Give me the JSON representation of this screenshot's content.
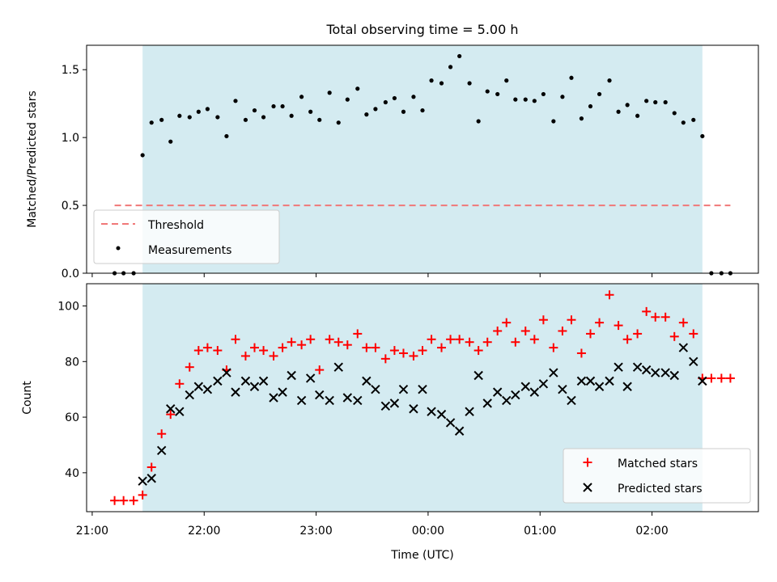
{
  "chart_data": [
    {
      "type": "scatter",
      "title": "Total observing time = 5.00 h",
      "ylabel": "Matched/Predicted stars",
      "xlabel": "",
      "ylim": [
        0,
        1.68
      ],
      "yticks": [
        0.0,
        0.5,
        1.0,
        1.5
      ],
      "ytick_labels": [
        "0.0",
        "0.5",
        "1.0",
        "1.5"
      ],
      "grid": false,
      "legend_position": "lower-left",
      "shaded_span": {
        "x0": 21.45,
        "x1": 26.45,
        "color": "#d4ebf1"
      },
      "threshold": {
        "name": "Threshold",
        "y": 0.5,
        "x0": 21.2,
        "x1": 26.7,
        "color": "#f07878"
      },
      "legend": [
        "Threshold",
        "Measurements"
      ],
      "series": [
        {
          "name": "Measurements",
          "color": "#000000",
          "x": [
            21.2,
            21.28,
            21.37,
            21.45,
            21.53,
            21.62,
            21.7,
            21.78,
            21.87,
            21.95,
            22.03,
            22.12,
            22.2,
            22.28,
            22.37,
            22.45,
            22.53,
            22.62,
            22.7,
            22.78,
            22.87,
            22.95,
            23.03,
            23.12,
            23.2,
            23.28,
            23.37,
            23.45,
            23.53,
            23.62,
            23.7,
            23.78,
            23.87,
            23.95,
            24.03,
            24.12,
            24.2,
            24.28,
            24.37,
            24.45,
            24.53,
            24.62,
            24.7,
            24.78,
            24.87,
            24.95,
            25.03,
            25.12,
            25.2,
            25.28,
            25.37,
            25.45,
            25.53,
            25.62,
            25.7,
            25.78,
            25.87,
            25.95,
            26.03,
            26.12,
            26.2,
            26.28,
            26.37,
            26.45,
            26.53,
            26.62,
            26.7
          ],
          "y": [
            0.0,
            0.0,
            0.0,
            0.87,
            1.11,
            1.13,
            0.97,
            1.16,
            1.15,
            1.19,
            1.21,
            1.15,
            1.01,
            1.27,
            1.13,
            1.2,
            1.15,
            1.23,
            1.23,
            1.16,
            1.3,
            1.19,
            1.13,
            1.33,
            1.11,
            1.28,
            1.36,
            1.17,
            1.21,
            1.26,
            1.29,
            1.19,
            1.3,
            1.2,
            1.42,
            1.4,
            1.52,
            1.6,
            1.4,
            1.12,
            1.34,
            1.32,
            1.42,
            1.28,
            1.28,
            1.27,
            1.32,
            1.12,
            1.3,
            1.44,
            1.14,
            1.23,
            1.32,
            1.42,
            1.19,
            1.24,
            1.16,
            1.27,
            1.26,
            1.26,
            1.18,
            1.11,
            1.13,
            1.01,
            0.0,
            0.0,
            0.0
          ]
        }
      ]
    },
    {
      "type": "scatter",
      "title": "",
      "xlabel": "Time (UTC)",
      "ylabel": "Count",
      "ylim": [
        26,
        108
      ],
      "yticks": [
        40,
        60,
        80,
        100
      ],
      "ytick_labels": [
        "40",
        "60",
        "80",
        "100"
      ],
      "xlim": [
        20.95,
        26.95
      ],
      "xticks": [
        21,
        22,
        23,
        24,
        25,
        26
      ],
      "xtick_labels": [
        "21:00",
        "22:00",
        "23:00",
        "00:00",
        "01:00",
        "02:00"
      ],
      "grid": false,
      "legend_position": "lower-right",
      "shaded_span": {
        "x0": 21.45,
        "x1": 26.45,
        "color": "#d4ebf1"
      },
      "legend": [
        "Matched stars",
        "Predicted stars"
      ],
      "series": [
        {
          "name": "Matched stars",
          "marker": "plus",
          "color": "#ff0000",
          "x": [
            21.2,
            21.28,
            21.37,
            21.45,
            21.53,
            21.62,
            21.7,
            21.78,
            21.87,
            21.95,
            22.03,
            22.12,
            22.2,
            22.28,
            22.37,
            22.45,
            22.53,
            22.62,
            22.7,
            22.78,
            22.87,
            22.95,
            23.03,
            23.12,
            23.2,
            23.28,
            23.37,
            23.45,
            23.53,
            23.62,
            23.7,
            23.78,
            23.87,
            23.95,
            24.03,
            24.12,
            24.2,
            24.28,
            24.37,
            24.45,
            24.53,
            24.62,
            24.7,
            24.78,
            24.87,
            24.95,
            25.03,
            25.12,
            25.2,
            25.28,
            25.37,
            25.45,
            25.53,
            25.62,
            25.7,
            25.78,
            25.87,
            25.95,
            26.03,
            26.12,
            26.2,
            26.28,
            26.37,
            26.45,
            26.53,
            26.62,
            26.7
          ],
          "y": [
            30,
            30,
            30,
            32,
            42,
            54,
            61,
            72,
            78,
            84,
            85,
            84,
            77,
            88,
            82,
            85,
            84,
            82,
            85,
            87,
            86,
            88,
            77,
            88,
            87,
            86,
            90,
            85,
            85,
            81,
            84,
            83,
            82,
            84,
            88,
            85,
            88,
            88,
            87,
            84,
            87,
            91,
            94,
            87,
            91,
            88,
            95,
            85,
            91,
            95,
            83,
            90,
            94,
            104,
            93,
            88,
            90,
            98,
            96,
            96,
            89,
            94,
            90,
            74,
            74,
            74,
            74
          ]
        },
        {
          "name": "Predicted stars",
          "marker": "x",
          "color": "#000000",
          "x": [
            21.45,
            21.53,
            21.62,
            21.7,
            21.78,
            21.87,
            21.95,
            22.03,
            22.12,
            22.2,
            22.28,
            22.37,
            22.45,
            22.53,
            22.62,
            22.7,
            22.78,
            22.87,
            22.95,
            23.03,
            23.12,
            23.2,
            23.28,
            23.37,
            23.45,
            23.53,
            23.62,
            23.7,
            23.78,
            23.87,
            23.95,
            24.03,
            24.12,
            24.2,
            24.28,
            24.37,
            24.45,
            24.53,
            24.62,
            24.7,
            24.78,
            24.87,
            24.95,
            25.03,
            25.12,
            25.2,
            25.28,
            25.37,
            25.45,
            25.53,
            25.62,
            25.7,
            25.78,
            25.87,
            25.95,
            26.03,
            26.12,
            26.2,
            26.28,
            26.37,
            26.45
          ],
          "y": [
            37,
            38,
            48,
            63,
            62,
            68,
            71,
            70,
            73,
            76,
            69,
            73,
            71,
            73,
            67,
            69,
            75,
            66,
            74,
            68,
            66,
            78,
            67,
            66,
            73,
            70,
            64,
            65,
            70,
            63,
            70,
            62,
            61,
            58,
            55,
            62,
            75,
            65,
            69,
            66,
            68,
            71,
            69,
            72,
            76,
            70,
            66,
            73,
            73,
            71,
            73,
            78,
            71,
            78,
            77,
            76,
            76,
            75,
            85,
            80,
            73
          ]
        }
      ]
    }
  ]
}
